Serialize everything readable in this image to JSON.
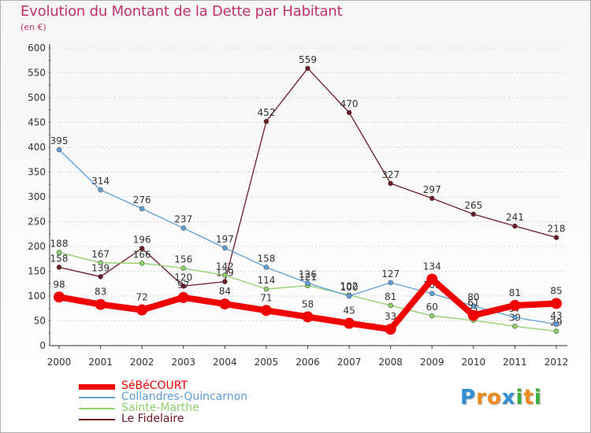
{
  "header": {
    "title": "Evolution du Montant de la Dette par Habitant",
    "subtitle": "(en €)"
  },
  "logo": {
    "letters": [
      "P",
      "r",
      "o",
      "x",
      "i",
      "t",
      "i"
    ],
    "colors": [
      "#2f8fd6",
      "#f08a1c",
      "#f08a1c",
      "#2f8fd6",
      "#3cae3c",
      "#f08a1c",
      "#3cae3c"
    ]
  },
  "chart_data": {
    "type": "line",
    "title": "Evolution du Montant de la Dette par Habitant",
    "subtitle": "(en €)",
    "xlabel": "",
    "ylabel": "",
    "x": [
      "2000",
      "2001",
      "2002",
      "2003",
      "2004",
      "2005",
      "2006",
      "2007",
      "2008",
      "2009",
      "2010",
      "2011",
      "2012"
    ],
    "ylim": [
      0,
      600
    ],
    "yticks": [
      "0",
      "50",
      "100",
      "150",
      "200",
      "250",
      "300",
      "350",
      "400",
      "450",
      "500",
      "550",
      "600"
    ],
    "grid": "horizontal-dashed",
    "legend_position": "bottom-left",
    "series": [
      {
        "name": "Le Fidelaire",
        "color": "#6b1a24",
        "values": [
          158,
          139,
          196,
          120,
          129,
          452,
          559,
          470,
          327,
          297,
          265,
          241,
          218
        ],
        "labels": [
          "158",
          "139",
          "196",
          "120",
          "129",
          "452",
          "559",
          "470",
          "327",
          "297",
          "265",
          "241",
          "218"
        ]
      },
      {
        "name": "Sainte-Marthe",
        "color": "#8ed06a",
        "values": [
          188,
          167,
          166,
          156,
          142,
          114,
          121,
          102,
          81,
          60,
          51,
          39,
          29
        ],
        "labels": [
          "188",
          "167",
          "166",
          "156",
          "142",
          "114",
          "121",
          "102",
          "81",
          "60",
          "51",
          "39",
          "29"
        ]
      },
      {
        "name": "Collandres-Quincarnon",
        "color": "#5f9ed8",
        "values": [
          395,
          314,
          276,
          237,
          197,
          158,
          126,
          100,
          127,
          105,
          80,
          57,
          43
        ],
        "labels": [
          "395",
          "314",
          "276",
          "237",
          "197",
          "158",
          "126",
          "100",
          "127",
          "105",
          "80",
          "57",
          "43"
        ]
      },
      {
        "name": "SéBéCOURT",
        "color": "#f00000",
        "values": [
          98,
          83,
          72,
          97,
          84,
          71,
          58,
          45,
          33,
          134,
          61,
          81,
          85
        ],
        "labels": [
          "98",
          "83",
          "72",
          "97",
          "84",
          "71",
          "58",
          "45",
          "33",
          "134",
          "61",
          "81",
          "85"
        ]
      }
    ],
    "legend_order": [
      "SéBéCOURT",
      "Collandres-Quincarnon",
      "Sainte-Marthe",
      "Le Fidelaire"
    ]
  }
}
